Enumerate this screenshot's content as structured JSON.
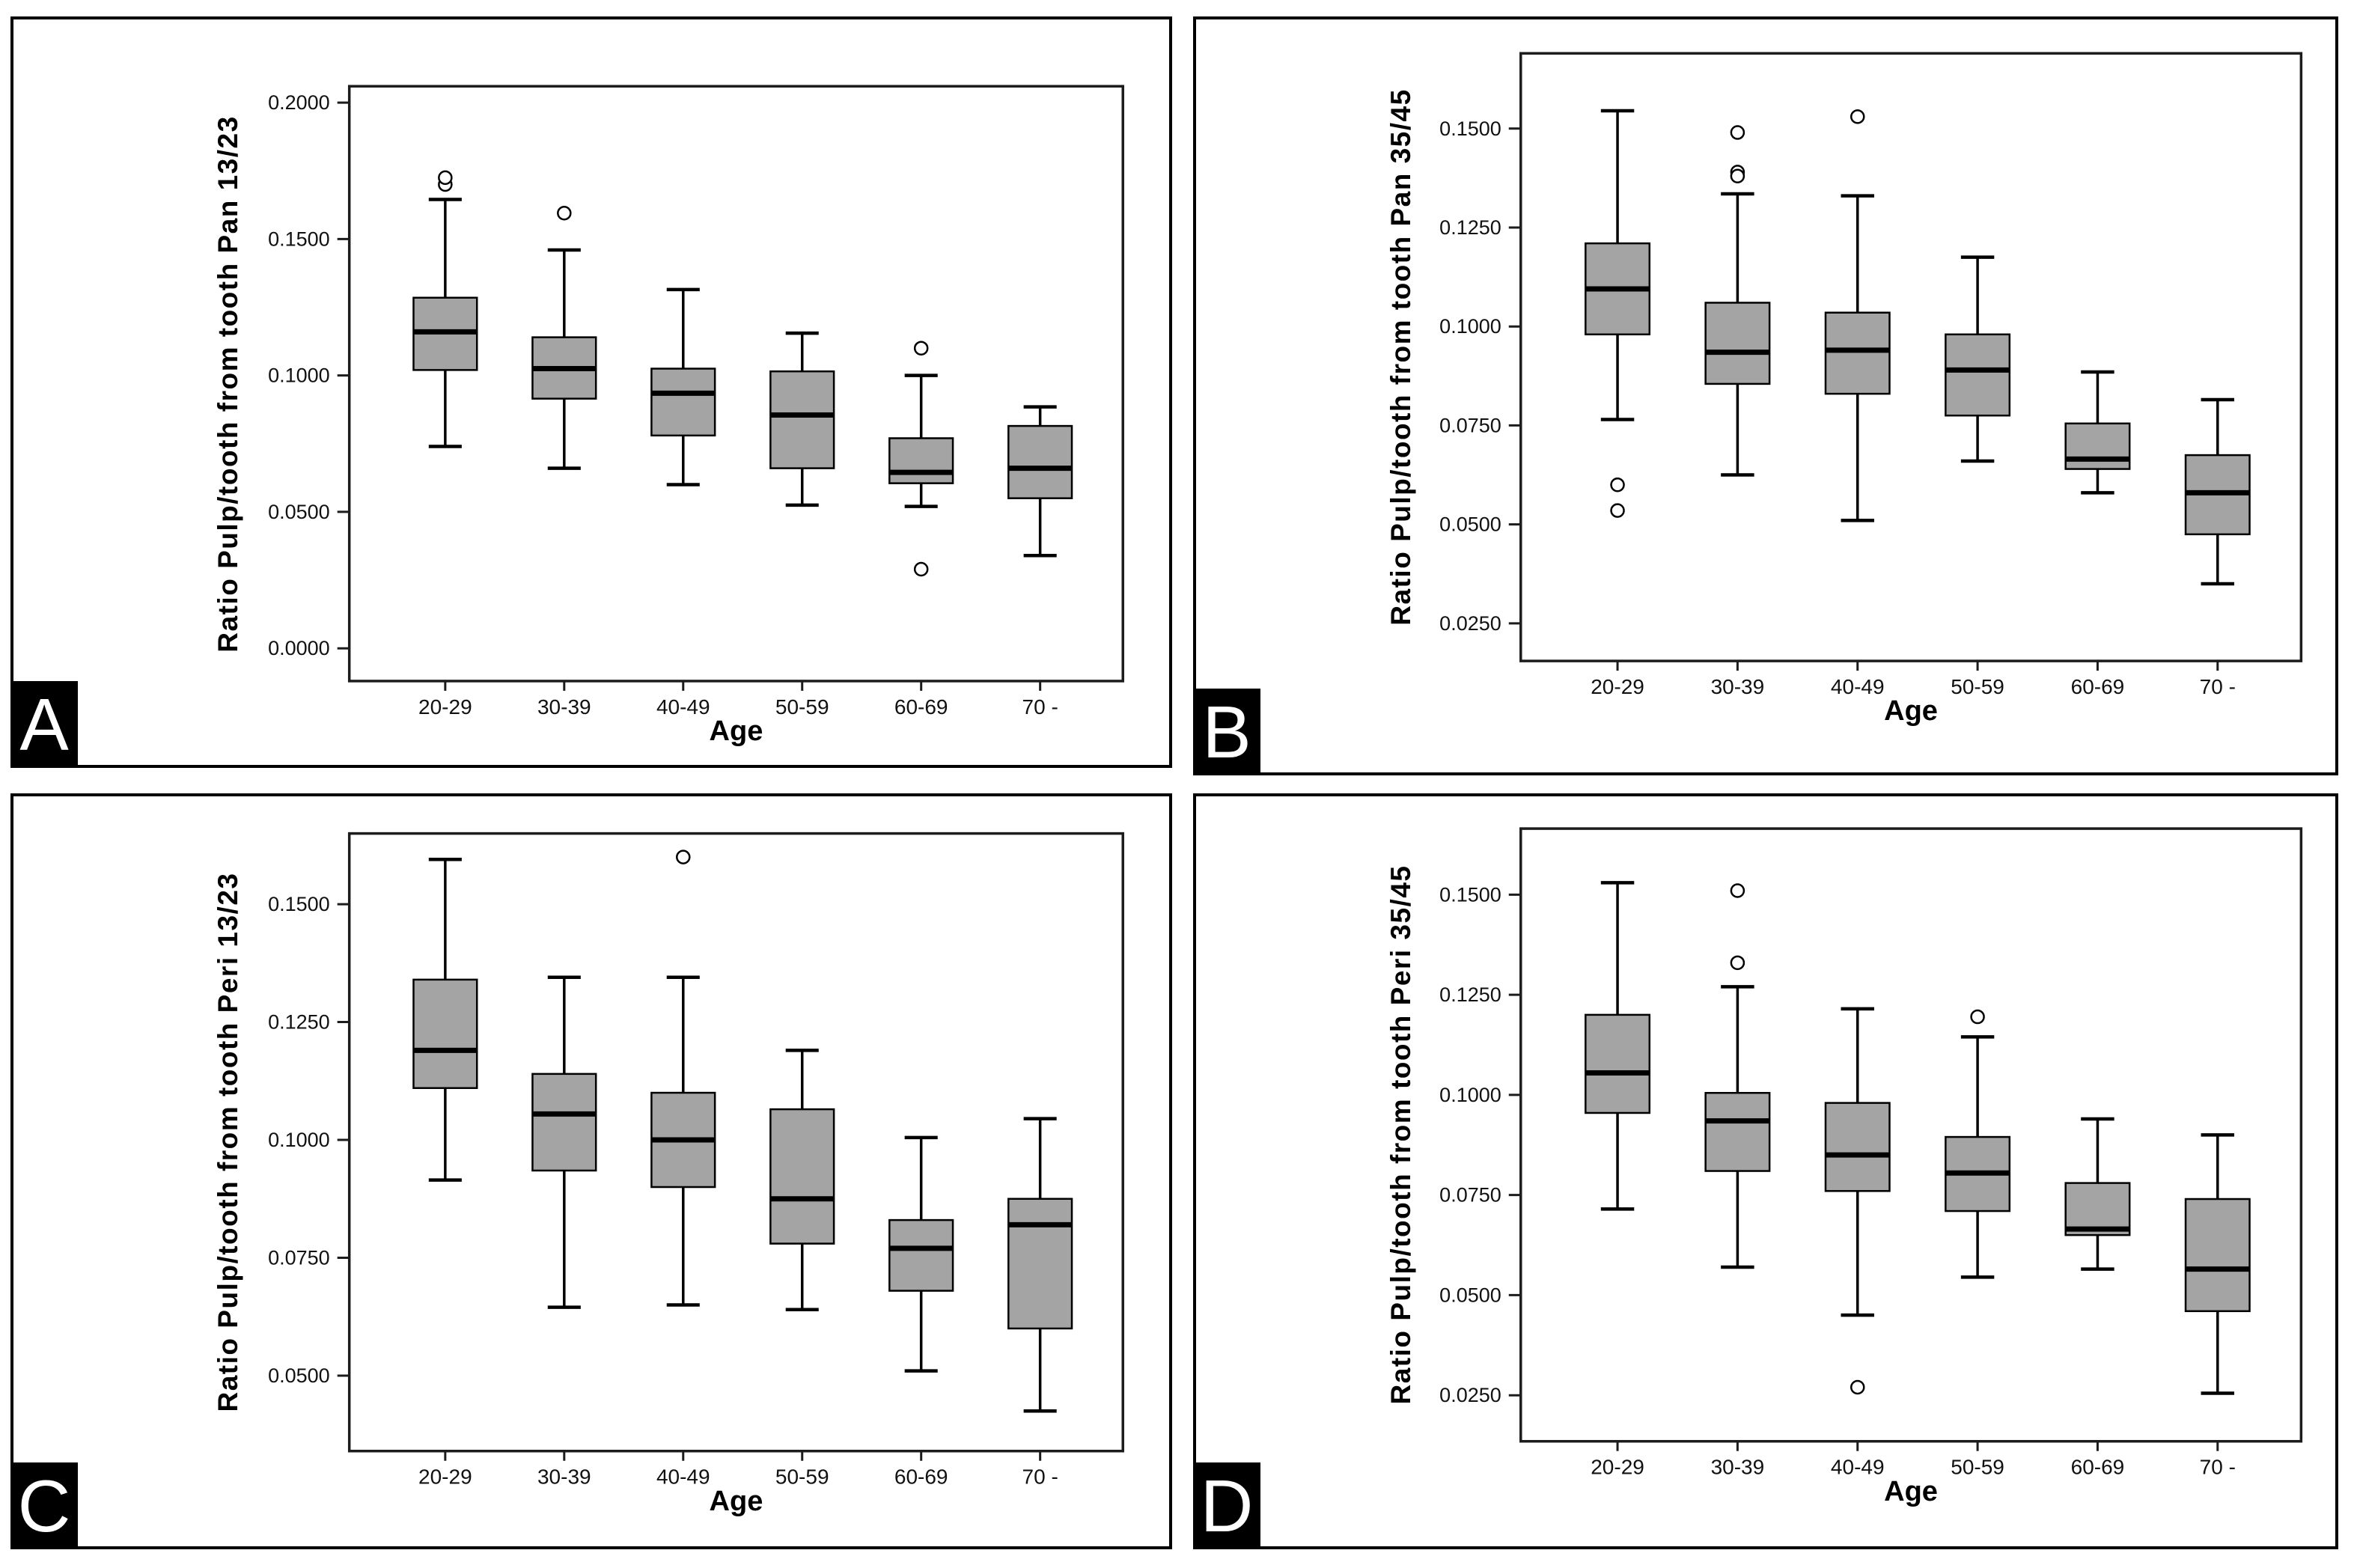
{
  "style": {
    "box_fill": "#a4a4a4",
    "line_color": "#000000",
    "frame_color": "#1c1c1c",
    "panel_bg": "#ffffff",
    "badge_bg": "#000000",
    "badge_fg": "#ffffff"
  },
  "chart_data": [
    {
      "type": "box",
      "badge": "A",
      "xlabel": "Age",
      "ylabel": "Ratio Pulp/tooth from tooth Pan 13/23",
      "categories": [
        "20-29",
        "30-39",
        "40-49",
        "50-59",
        "60-69",
        "70 -"
      ],
      "yticks": [
        0.2,
        0.15,
        0.1,
        0.05,
        0.0
      ],
      "ytick_labels": [
        "0.2000",
        "0.1500",
        "0.1000",
        "0.0500",
        "0.0000"
      ],
      "ylim": [
        -0.012,
        0.206
      ],
      "frame": {
        "left": 0.2906,
        "right": 0.96,
        "top": 0.0896,
        "bottom": 0.8875
      },
      "boxes": [
        {
          "low": 0.074,
          "q1": 0.102,
          "median": 0.116,
          "q3": 0.1285,
          "high": 0.1645,
          "outliers": [
            0.17,
            0.1725
          ]
        },
        {
          "low": 0.066,
          "q1": 0.0915,
          "median": 0.1025,
          "q3": 0.114,
          "high": 0.146,
          "outliers": [
            0.1595
          ]
        },
        {
          "low": 0.06,
          "q1": 0.078,
          "median": 0.0935,
          "q3": 0.1025,
          "high": 0.1315,
          "outliers": []
        },
        {
          "low": 0.0525,
          "q1": 0.066,
          "median": 0.0855,
          "q3": 0.1015,
          "high": 0.1155,
          "outliers": []
        },
        {
          "low": 0.052,
          "q1": 0.0605,
          "median": 0.0645,
          "q3": 0.077,
          "high": 0.1,
          "outliers": [
            0.11,
            0.029
          ]
        },
        {
          "low": 0.034,
          "q1": 0.055,
          "median": 0.066,
          "q3": 0.0815,
          "high": 0.0885,
          "outliers": []
        }
      ]
    },
    {
      "type": "box",
      "badge": "B",
      "xlabel": "Age",
      "ylabel": "Ratio Pulp/tooth from tooth Pan 35/45",
      "categories": [
        "20-29",
        "30-39",
        "40-49",
        "50-59",
        "60-69",
        "70 -"
      ],
      "yticks": [
        0.15,
        0.125,
        0.1,
        0.075,
        0.05,
        0.025
      ],
      "ytick_labels": [
        "0.1500",
        "0.1250",
        "0.1000",
        "0.0750",
        "0.0500",
        "0.0250"
      ],
      "ylim": [
        0.0155,
        0.169
      ],
      "frame": {
        "left": 0.285,
        "right": 0.97,
        "top": 0.045,
        "bottom": 0.852
      },
      "boxes": [
        {
          "low": 0.0765,
          "q1": 0.098,
          "median": 0.1095,
          "q3": 0.121,
          "high": 0.1545,
          "outliers": [
            0.06,
            0.0535
          ]
        },
        {
          "low": 0.0625,
          "q1": 0.0855,
          "median": 0.0935,
          "q3": 0.106,
          "high": 0.1335,
          "outliers": [
            0.149,
            0.139,
            0.138
          ]
        },
        {
          "low": 0.051,
          "q1": 0.083,
          "median": 0.094,
          "q3": 0.1035,
          "high": 0.133,
          "outliers": [
            0.153
          ]
        },
        {
          "low": 0.066,
          "q1": 0.0775,
          "median": 0.089,
          "q3": 0.098,
          "high": 0.1175,
          "outliers": []
        },
        {
          "low": 0.058,
          "q1": 0.064,
          "median": 0.0665,
          "q3": 0.0755,
          "high": 0.0885,
          "outliers": []
        },
        {
          "low": 0.035,
          "q1": 0.0475,
          "median": 0.058,
          "q3": 0.0675,
          "high": 0.0815,
          "outliers": []
        }
      ]
    },
    {
      "type": "box",
      "badge": "C",
      "xlabel": "Age",
      "ylabel": "Ratio Pulp/tooth from tooth Peri 13/23",
      "categories": [
        "20-29",
        "30-39",
        "40-49",
        "50-59",
        "60-69",
        "70 -"
      ],
      "yticks": [
        0.15,
        0.125,
        0.1,
        0.075,
        0.05
      ],
      "ytick_labels": [
        "0.1500",
        "0.1250",
        "0.1000",
        "0.0750",
        "0.0500"
      ],
      "ylim": [
        0.034,
        0.165
      ],
      "frame": {
        "left": 0.2906,
        "right": 0.96,
        "top": 0.0495,
        "bottom": 0.873
      },
      "boxes": [
        {
          "low": 0.0915,
          "q1": 0.111,
          "median": 0.119,
          "q3": 0.134,
          "high": 0.1595,
          "outliers": []
        },
        {
          "low": 0.0645,
          "q1": 0.0935,
          "median": 0.1055,
          "q3": 0.114,
          "high": 0.1345,
          "outliers": []
        },
        {
          "low": 0.065,
          "q1": 0.09,
          "median": 0.1,
          "q3": 0.11,
          "high": 0.1345,
          "outliers": [
            0.16
          ]
        },
        {
          "low": 0.064,
          "q1": 0.078,
          "median": 0.0875,
          "q3": 0.1065,
          "high": 0.119,
          "outliers": []
        },
        {
          "low": 0.051,
          "q1": 0.068,
          "median": 0.077,
          "q3": 0.083,
          "high": 0.1005,
          "outliers": []
        },
        {
          "low": 0.0425,
          "q1": 0.06,
          "median": 0.082,
          "q3": 0.0875,
          "high": 0.1045,
          "outliers": []
        }
      ]
    },
    {
      "type": "box",
      "badge": "D",
      "xlabel": "Age",
      "ylabel": "Ratio Pulp/tooth from tooth Peri 35/45",
      "categories": [
        "20-29",
        "30-39",
        "40-49",
        "50-59",
        "60-69",
        "70 -"
      ],
      "yticks": [
        0.15,
        0.125,
        0.1,
        0.075,
        0.05,
        0.025
      ],
      "ytick_labels": [
        "0.1500",
        "0.1250",
        "0.1000",
        "0.0750",
        "0.0500",
        "0.0250"
      ],
      "ylim": [
        0.0135,
        0.1665
      ],
      "frame": {
        "left": 0.285,
        "right": 0.97,
        "top": 0.043,
        "bottom": 0.86
      },
      "boxes": [
        {
          "low": 0.0715,
          "q1": 0.0955,
          "median": 0.1055,
          "q3": 0.12,
          "high": 0.153,
          "outliers": []
        },
        {
          "low": 0.057,
          "q1": 0.081,
          "median": 0.0935,
          "q3": 0.1005,
          "high": 0.127,
          "outliers": [
            0.151,
            0.133
          ]
        },
        {
          "low": 0.045,
          "q1": 0.076,
          "median": 0.085,
          "q3": 0.098,
          "high": 0.1215,
          "outliers": [
            0.027
          ]
        },
        {
          "low": 0.0545,
          "q1": 0.071,
          "median": 0.0805,
          "q3": 0.0895,
          "high": 0.1145,
          "outliers": [
            0.1195
          ]
        },
        {
          "low": 0.0565,
          "q1": 0.065,
          "median": 0.0665,
          "q3": 0.078,
          "high": 0.094,
          "outliers": []
        },
        {
          "low": 0.0255,
          "q1": 0.046,
          "median": 0.0565,
          "q3": 0.074,
          "high": 0.09,
          "outliers": []
        }
      ]
    }
  ]
}
